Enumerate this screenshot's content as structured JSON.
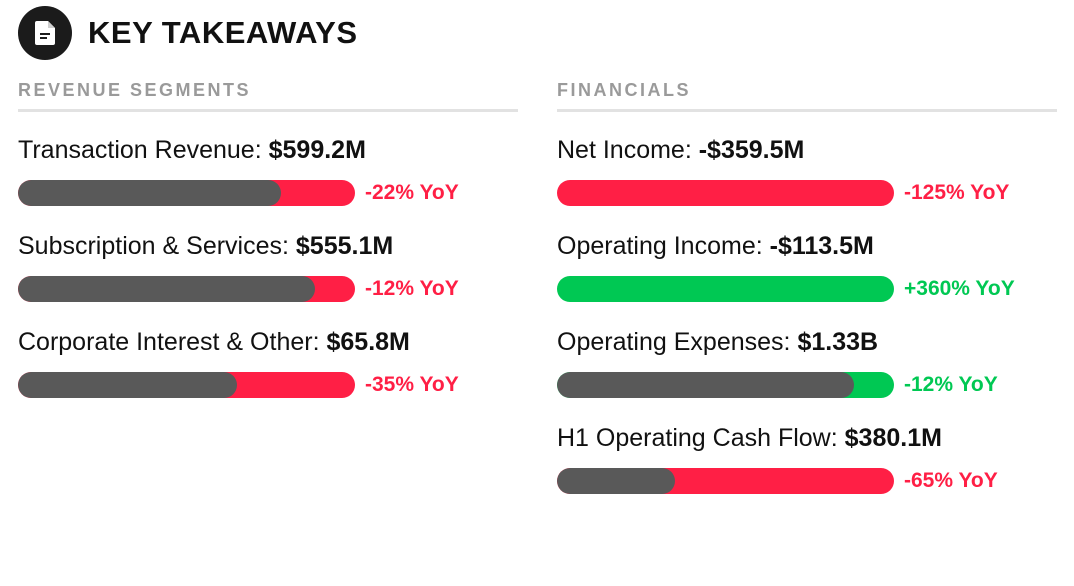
{
  "header": {
    "title": "KEY TAKEAWAYS",
    "icon": "document-icon"
  },
  "colors": {
    "positive": "#00c853",
    "negative": "#ff1f45",
    "neutral": "#595959"
  },
  "chart_data": [
    {
      "type": "bar",
      "title": "REVENUE SEGMENTS",
      "metrics": [
        {
          "label": "Transaction Revenue:",
          "value": "$599.2M",
          "yoy": "-22% YoY",
          "change_pct": -22,
          "direction": "negative",
          "fill": 0.78
        },
        {
          "label": "Subscription & Services:",
          "value": "$555.1M",
          "yoy": "-12% YoY",
          "change_pct": -12,
          "direction": "negative",
          "fill": 0.88
        },
        {
          "label": "Corporate Interest & Other:",
          "value": "$65.8M",
          "yoy": "-35% YoY",
          "change_pct": -35,
          "direction": "negative",
          "fill": 0.65
        }
      ]
    },
    {
      "type": "bar",
      "title": "FINANCIALS",
      "metrics": [
        {
          "label": "Net Income:",
          "value": "-$359.5M",
          "yoy": "-125% YoY",
          "change_pct": -125,
          "direction": "negative",
          "fill": 0
        },
        {
          "label": "Operating Income:",
          "value": "-$113.5M",
          "yoy": "+360% YoY",
          "change_pct": 360,
          "direction": "positive",
          "fill": 0
        },
        {
          "label": "Operating Expenses:",
          "value": "$1.33B",
          "yoy": "-12% YoY",
          "change_pct": -12,
          "direction": "positive",
          "fill": 0.88
        },
        {
          "label": "H1 Operating Cash Flow:",
          "value": "$380.1M",
          "yoy": "-65% YoY",
          "change_pct": -65,
          "direction": "negative",
          "fill": 0.35
        }
      ]
    }
  ]
}
